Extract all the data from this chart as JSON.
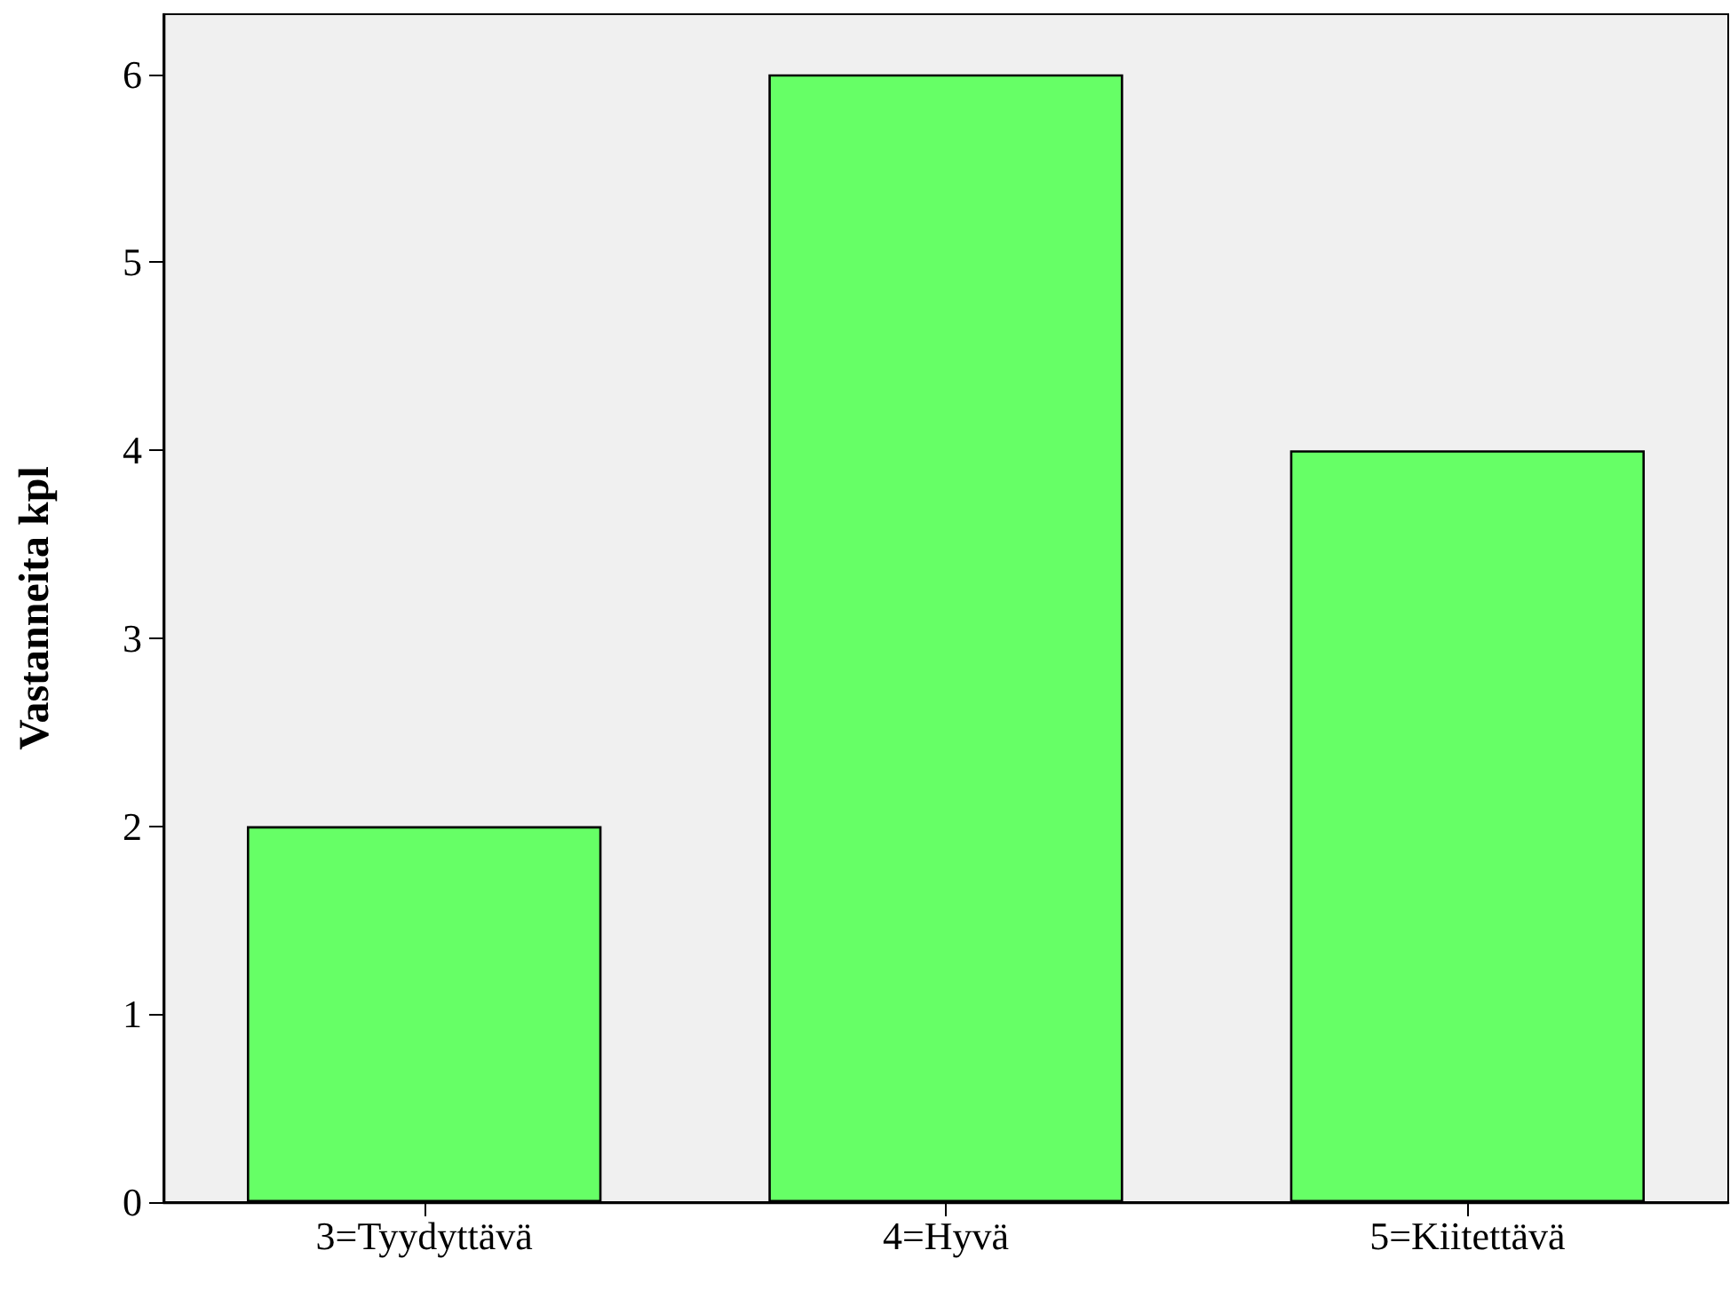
{
  "chart_data": {
    "type": "bar",
    "ylabel": "Vastanneita kpl",
    "categories": [
      "3=Tyydyttävä",
      "4=Hyvä",
      "5=Kiitettävä"
    ],
    "values": [
      2,
      6,
      4
    ],
    "color": "#66ff66",
    "ylim": [
      0,
      6.32
    ],
    "yticks": [
      0,
      1,
      2,
      3,
      4,
      5,
      6
    ],
    "grid": false
  }
}
